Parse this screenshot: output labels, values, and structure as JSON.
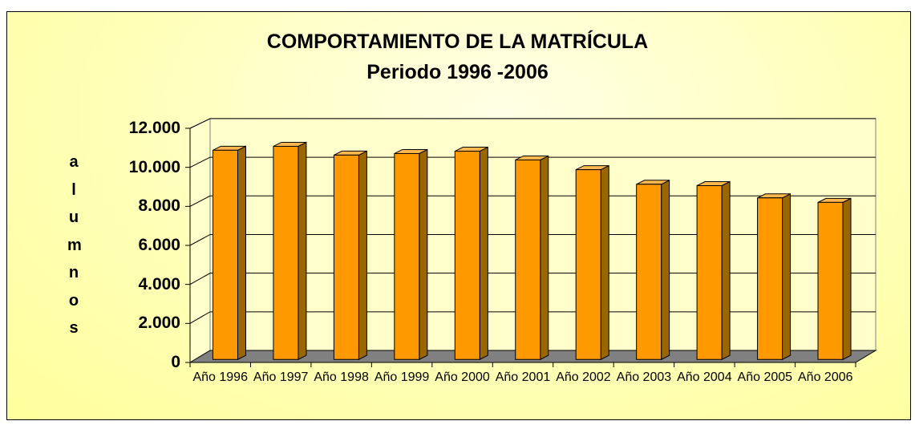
{
  "chart_data": {
    "type": "bar3d",
    "title": "COMPORTAMIENTO DE LA MATRÍCULA",
    "subtitle": "Periodo 1996 -2006",
    "y_label": "alumnos",
    "categories": [
      "Año 1996",
      "Año 1997",
      "Año 1998",
      "Año 1999",
      "Año 2000",
      "Año 2001",
      "Año 2002",
      "Año 2003",
      "Año 2004",
      "Año 2005",
      "Año 2006"
    ],
    "values": [
      10750,
      10950,
      10500,
      10580,
      10700,
      10250,
      9750,
      9000,
      8930,
      8300,
      8070
    ],
    "color": "#ff9900",
    "ylim": [
      0,
      12000
    ],
    "yticks": [
      0,
      {
        "value": 2000,
        "label": "2.000"
      },
      {
        "value": 4000,
        "label": "4.000"
      },
      {
        "value": 6000,
        "label": "6.000"
      },
      {
        "value": 8000,
        "label": "8.000"
      },
      {
        "value": 10000,
        "label": "10.000"
      },
      {
        "value": 12000,
        "label": "12.000"
      }
    ],
    "grid": true
  }
}
